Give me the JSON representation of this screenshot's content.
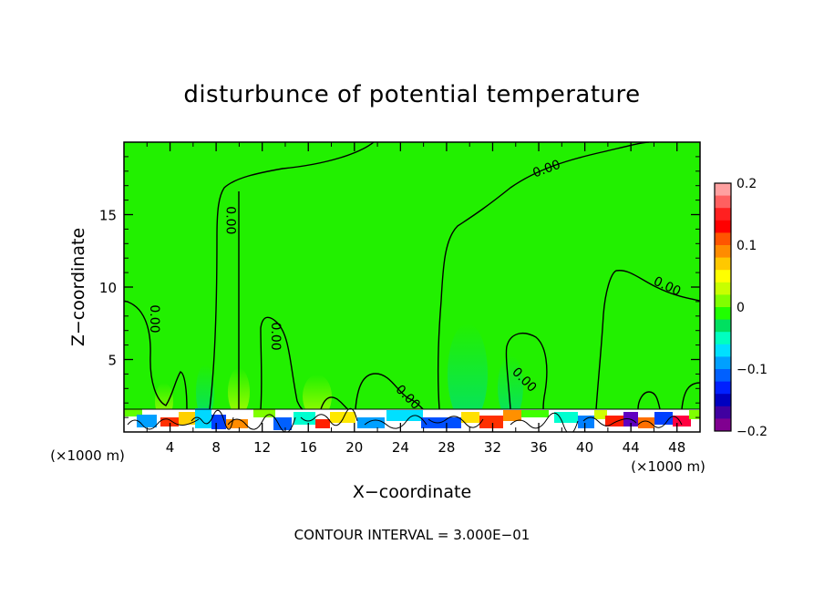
{
  "chart_data": {
    "type": "heatmap",
    "title": "disturbunce of potential temperature",
    "xlabel": "X−coordinate",
    "ylabel": "Z−coordinate",
    "x_unit_left": "(×1000 m)",
    "x_unit_right": "(×1000 m)",
    "xlim": [
      0,
      50
    ],
    "ylim": [
      0,
      20
    ],
    "x_ticks": [
      4,
      8,
      12,
      16,
      20,
      24,
      28,
      32,
      36,
      40,
      44,
      48
    ],
    "x_tick_labels": [
      "4",
      "8",
      "12",
      "16",
      "20",
      "24",
      "28",
      "32",
      "36",
      "40",
      "44",
      "48"
    ],
    "y_ticks": [
      5,
      10,
      15
    ],
    "y_tick_labels": [
      "5",
      "10",
      "15"
    ],
    "contour_interval_text": "CONTOUR INTERVAL = 3.000E−01",
    "contour_labels": [
      {
        "text": "0.00",
        "x": 2.3,
        "y": 7.8
      },
      {
        "text": "0.00",
        "x": 8.9,
        "y": 14.6
      },
      {
        "text": "0.00",
        "x": 12.8,
        "y": 6.6
      },
      {
        "text": "0.00",
        "x": 24.4,
        "y": 2.2
      },
      {
        "text": "0.00",
        "x": 34.5,
        "y": 3.4
      },
      {
        "text": "0.00",
        "x": 36.8,
        "y": 17.9
      },
      {
        "text": "0.00",
        "x": 47.0,
        "y": 9.8
      }
    ],
    "colorbar": {
      "min": -0.2,
      "max": 0.2,
      "tick_values": [
        0.2,
        0.1,
        0,
        -0.1,
        -0.2
      ],
      "tick_labels": [
        "0.2",
        "0.1",
        "0",
        "−0.1",
        "−0.2"
      ],
      "colors": [
        "#ffa0a0",
        "#ff6060",
        "#ff2020",
        "#ff0000",
        "#ff5500",
        "#ff8c00",
        "#ffc800",
        "#ffff00",
        "#c8ff00",
        "#80ff00",
        "#20ff00",
        "#00e060",
        "#00ffc0",
        "#00e0ff",
        "#00a0ff",
        "#0060ff",
        "#0020ff",
        "#0000c0",
        "#4000a0",
        "#800090"
      ]
    },
    "field_color": "#22f000"
  }
}
